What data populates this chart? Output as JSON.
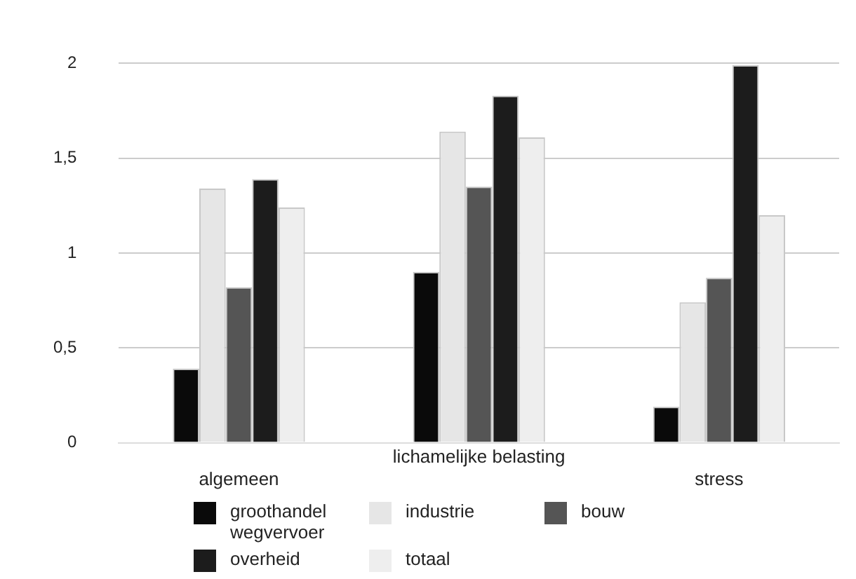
{
  "chart_data": {
    "type": "bar",
    "categories": [
      "algemeen",
      "lichamelijke belasting",
      "stress"
    ],
    "series": [
      {
        "name": "groothandel wegvervoer",
        "color": "#0a0a0a",
        "values": [
          0.39,
          0.9,
          0.19
        ]
      },
      {
        "name": "industrie",
        "color": "#e6e6e6",
        "values": [
          1.34,
          1.64,
          0.74
        ]
      },
      {
        "name": "bouw",
        "color": "#555555",
        "values": [
          0.82,
          1.35,
          0.87
        ]
      },
      {
        "name": "overheid",
        "color": "#1c1c1c",
        "values": [
          1.39,
          1.83,
          1.99
        ]
      },
      {
        "name": "totaal",
        "color": "#eeeeee",
        "values": [
          1.24,
          1.61,
          1.2
        ]
      }
    ],
    "ylim": [
      0,
      2
    ],
    "yticks": [
      0,
      {
        "value": 0.5,
        "label": "0,5"
      },
      1,
      {
        "value": 1.5,
        "label": "1,5"
      },
      2
    ],
    "grid": "y",
    "legend": "bottom"
  }
}
